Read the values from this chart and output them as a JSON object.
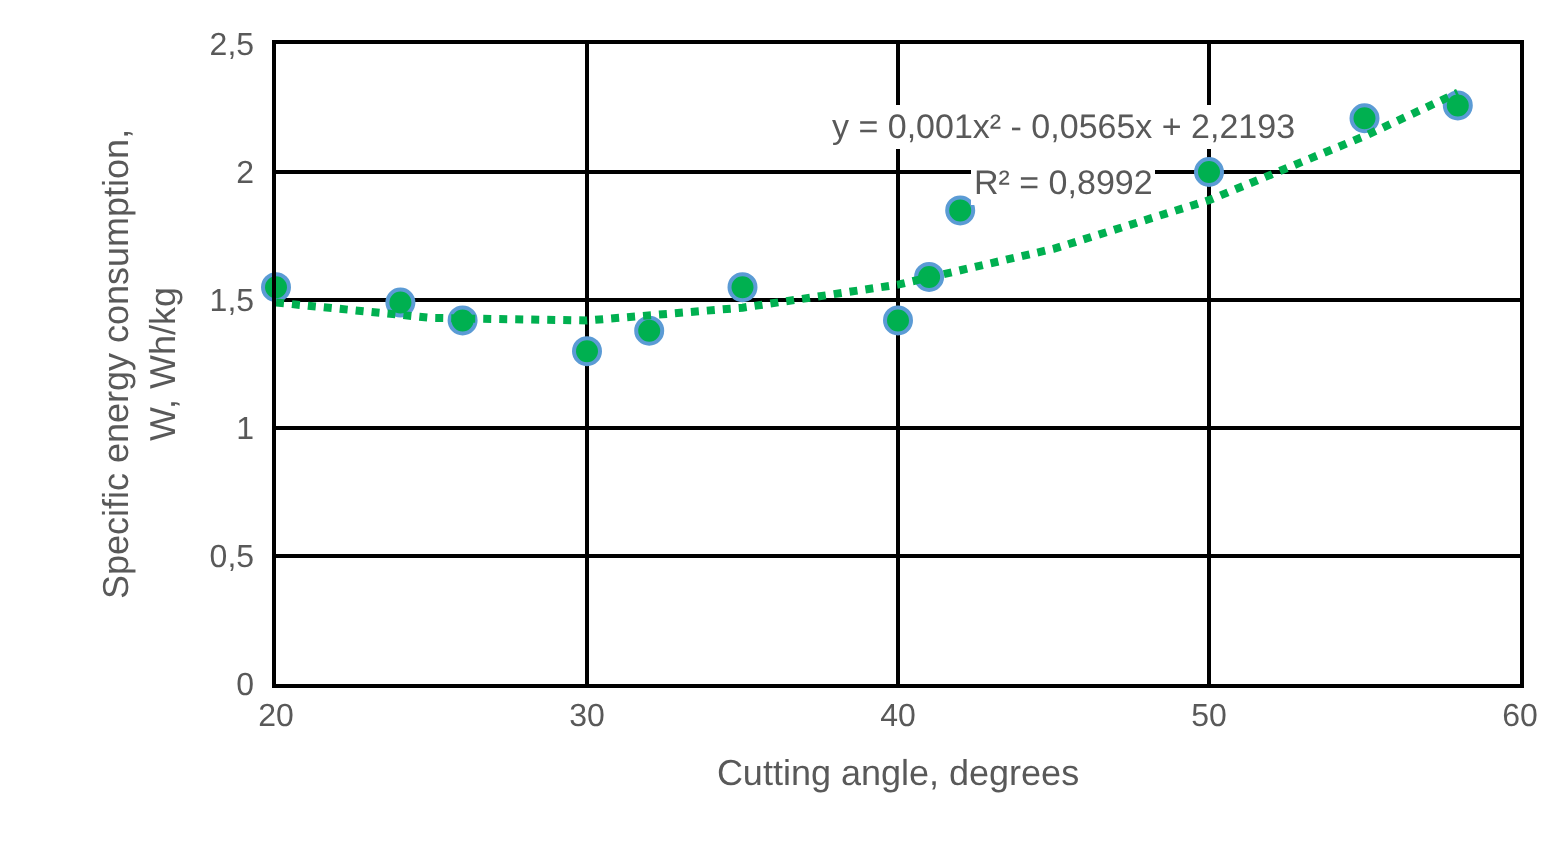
{
  "chart_data": {
    "type": "scatter",
    "xlabel": "Cutting angle, degrees",
    "ylabel": "Specific energy consumption, W, Wh/kg",
    "annotations": [
      "y = 0,001x² - 0,0565x + 2,2193",
      "R² = 0,8992"
    ],
    "x": [
      20,
      24,
      26,
      30,
      32,
      35,
      40,
      41,
      42,
      50,
      55,
      58
    ],
    "series": [
      {
        "color": "#00b050",
        "marker": "circle",
        "values": [
          1.55,
          1.49,
          1.42,
          1.3,
          1.38,
          1.55,
          1.42,
          1.59,
          1.85,
          2.0,
          2.21,
          2.26
        ]
      },
      {
        "type": "line",
        "color": "#00b050",
        "marker": "none",
        "line_style": "dotted",
        "x": [
          20,
          25,
          30,
          35,
          40,
          45,
          50,
          55,
          58
        ],
        "values": [
          1.49,
          1.43,
          1.42,
          1.47,
          1.56,
          1.7,
          1.89,
          2.14,
          2.31
        ]
      }
    ],
    "xlim": [
      20,
      60
    ],
    "xticks": [
      20,
      30,
      40,
      50,
      60
    ],
    "ylim": [
      0,
      2.5
    ],
    "yticks": [
      0,
      {
        "value": 0.5,
        "label": "0,5"
      },
      1,
      {
        "value": 1.5,
        "label": "1,5"
      },
      2,
      {
        "value": 2.5,
        "label": "2,5"
      }
    ],
    "grid": true
  }
}
